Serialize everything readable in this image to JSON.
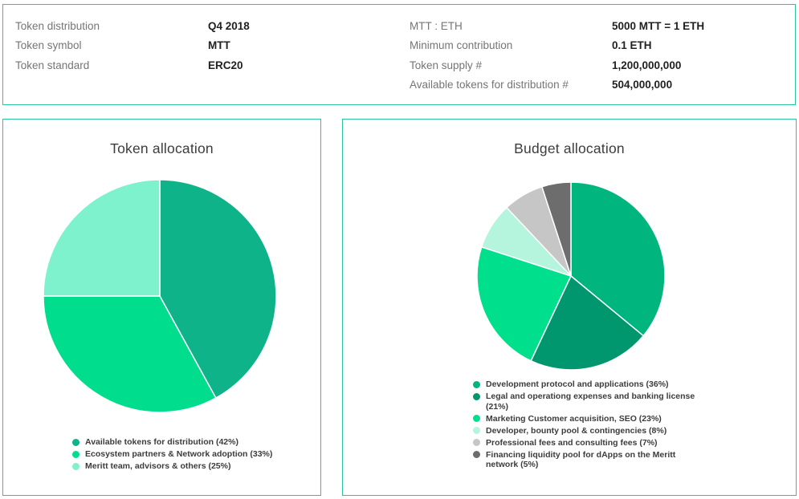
{
  "info_panel": {
    "left": [
      {
        "label": "Token distribution",
        "value": "Q4 2018"
      },
      {
        "label": "Token symbol",
        "value": "MTT"
      },
      {
        "label": "Token standard",
        "value": "ERC20"
      }
    ],
    "right": [
      {
        "label": "MTT : ETH",
        "value": "5000 MTT = 1 ETH"
      },
      {
        "label": "Minimum contribution",
        "value": "0.1 ETH"
      },
      {
        "label": "Token supply #",
        "value": "1,200,000,000"
      },
      {
        "label": "Available tokens for distribution #",
        "value": "504,000,000"
      }
    ]
  },
  "colors": {
    "panel_border": "#2bc2a0",
    "label_text": "#757575",
    "value_text": "#212121",
    "title_text": "#3d3d3d",
    "legend_text": "#3c3c3c",
    "slice_separator": "#ffffff"
  },
  "chart_data": [
    {
      "type": "pie",
      "title": "Token allocation",
      "labels": [
        "Available tokens for distribution (42%)",
        "Ecosystem partners & Network adoption (33%)",
        "Meritt team, advisors & others (25%)"
      ],
      "values": [
        42,
        33,
        25
      ],
      "colors": [
        "#0fb389",
        "#00dd8d",
        "#7df2cd"
      ],
      "start_angle_deg": 0,
      "direction": "clockwise",
      "legend_position": "bottom"
    },
    {
      "type": "pie",
      "title": "Budget allocation",
      "labels": [
        "Development protocol and applications (36%)",
        "Legal and operationg expenses and banking license (21%)",
        "Marketing Customer acquisition, SEO (23%)",
        "Developer, bounty pool & contingencies (8%)",
        "Professional fees and consulting fees (7%)",
        "Financing liquidity pool for dApps on the Meritt network (5%)"
      ],
      "values": [
        36,
        21,
        23,
        8,
        7,
        5
      ],
      "colors": [
        "#00b57e",
        "#00966e",
        "#00e08c",
        "#b5f5dd",
        "#c6c6c6",
        "#6d6d6d"
      ],
      "start_angle_deg": 0,
      "direction": "clockwise",
      "legend_position": "bottom"
    }
  ]
}
